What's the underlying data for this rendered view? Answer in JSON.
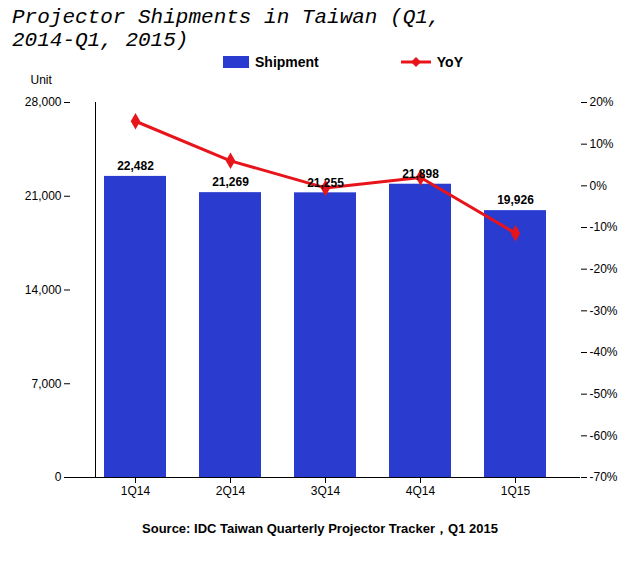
{
  "chart_data": {
    "type": "bar",
    "title": "Projector Shipments in Taiwan (Q1, 2014-Q1, 2015)",
    "caption": "Source: IDC Taiwan Quarterly Projector Tracker，Q1 2015",
    "y_label": "Unit",
    "categories": [
      "1Q14",
      "2Q14",
      "3Q14",
      "4Q14",
      "1Q15"
    ],
    "series": [
      {
        "name": "Shipment",
        "type": "bar",
        "color": "#2a3bd0",
        "data_labels": true,
        "values": [
          22482,
          21269,
          21255,
          21898,
          19926
        ],
        "value_labels": [
          "22,482",
          "21,269",
          "21,255",
          "21,898",
          "19,926"
        ]
      },
      {
        "name": "YoY",
        "type": "line",
        "axis": "y2",
        "color": "#e8141b",
        "marker": "diamond",
        "values": [
          15.5,
          6,
          -0.5,
          2,
          -11.4
        ]
      }
    ],
    "ylim": [
      0,
      28000
    ],
    "yticks": [
      0,
      {
        "value": 7000,
        "label": "7,000"
      },
      {
        "value": 14000,
        "label": "14,000"
      },
      {
        "value": 21000,
        "label": "21,000"
      },
      {
        "value": 28000,
        "label": "28,000"
      }
    ],
    "y2lim": [
      -70,
      20
    ],
    "y2ticks": [
      {
        "value": -70,
        "label": "-70%"
      },
      {
        "value": -60,
        "label": "-60%"
      },
      {
        "value": -50,
        "label": "-50%"
      },
      {
        "value": -40,
        "label": "-40%"
      },
      {
        "value": -30,
        "label": "-30%"
      },
      {
        "value": -20,
        "label": "-20%"
      },
      {
        "value": -10,
        "label": "-10%"
      },
      {
        "value": 0,
        "label": "0%"
      },
      {
        "value": 10,
        "label": "10%"
      },
      {
        "value": 20,
        "label": "20%"
      }
    ]
  }
}
